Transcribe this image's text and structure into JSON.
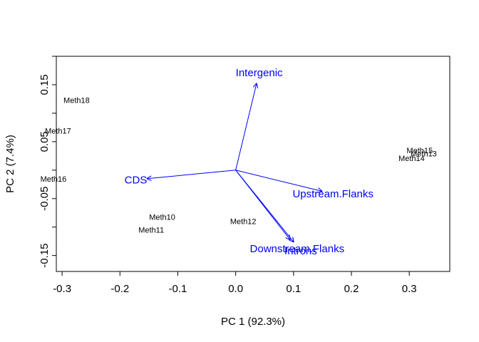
{
  "chart_data": {
    "type": "scatter",
    "subtype": "biplot",
    "title": "",
    "xlabel": "PC 1 (92.3%)",
    "ylabel": "PC 2 (7.4%)",
    "xlim": [
      -0.31,
      0.37
    ],
    "ylim": [
      -0.178,
      0.2
    ],
    "x_ticks": [
      -0.3,
      -0.2,
      -0.1,
      0.0,
      0.1,
      0.2,
      0.3
    ],
    "x_tick_labels": [
      "-0.3",
      "-0.2",
      "-0.1",
      "0.0",
      "0.1",
      "0.2",
      "0.3"
    ],
    "y_ticks": [
      -0.15,
      -0.05,
      0.05,
      0.15
    ],
    "y_tick_labels": [
      "-0.15",
      "-0.05",
      "0.05",
      "0.15"
    ],
    "y_minor_ticks": [
      -0.1,
      0.0,
      0.1,
      0.2
    ],
    "grid": false,
    "legend": "none",
    "point_color": "#000000",
    "arrow_color": "#0000ff",
    "points": [
      {
        "label": "Meth18",
        "x": -0.275,
        "y": 0.123
      },
      {
        "label": "Meth17",
        "x": -0.307,
        "y": 0.069
      },
      {
        "label": "Meth16",
        "x": -0.315,
        "y": -0.015
      },
      {
        "label": "Meth10",
        "x": -0.127,
        "y": -0.082
      },
      {
        "label": "Meth11",
        "x": -0.146,
        "y": -0.105
      },
      {
        "label": "Meth12",
        "x": 0.013,
        "y": -0.09
      },
      {
        "label": "Meth15",
        "x": 0.318,
        "y": 0.035
      },
      {
        "label": "Meth13",
        "x": 0.325,
        "y": 0.029
      },
      {
        "label": "Meth14",
        "x": 0.304,
        "y": 0.021
      }
    ],
    "arrows": [
      {
        "label": "Intergenic",
        "x": 0.036,
        "y": 0.152
      },
      {
        "label": "CDS",
        "x": -0.153,
        "y": -0.015
      },
      {
        "label": "Upstream.Flanks",
        "x": 0.149,
        "y": -0.037
      },
      {
        "label": "Downstream.Flanks",
        "x": 0.094,
        "y": -0.122
      },
      {
        "label": "Introns",
        "x": 0.1,
        "y": -0.126
      }
    ]
  }
}
